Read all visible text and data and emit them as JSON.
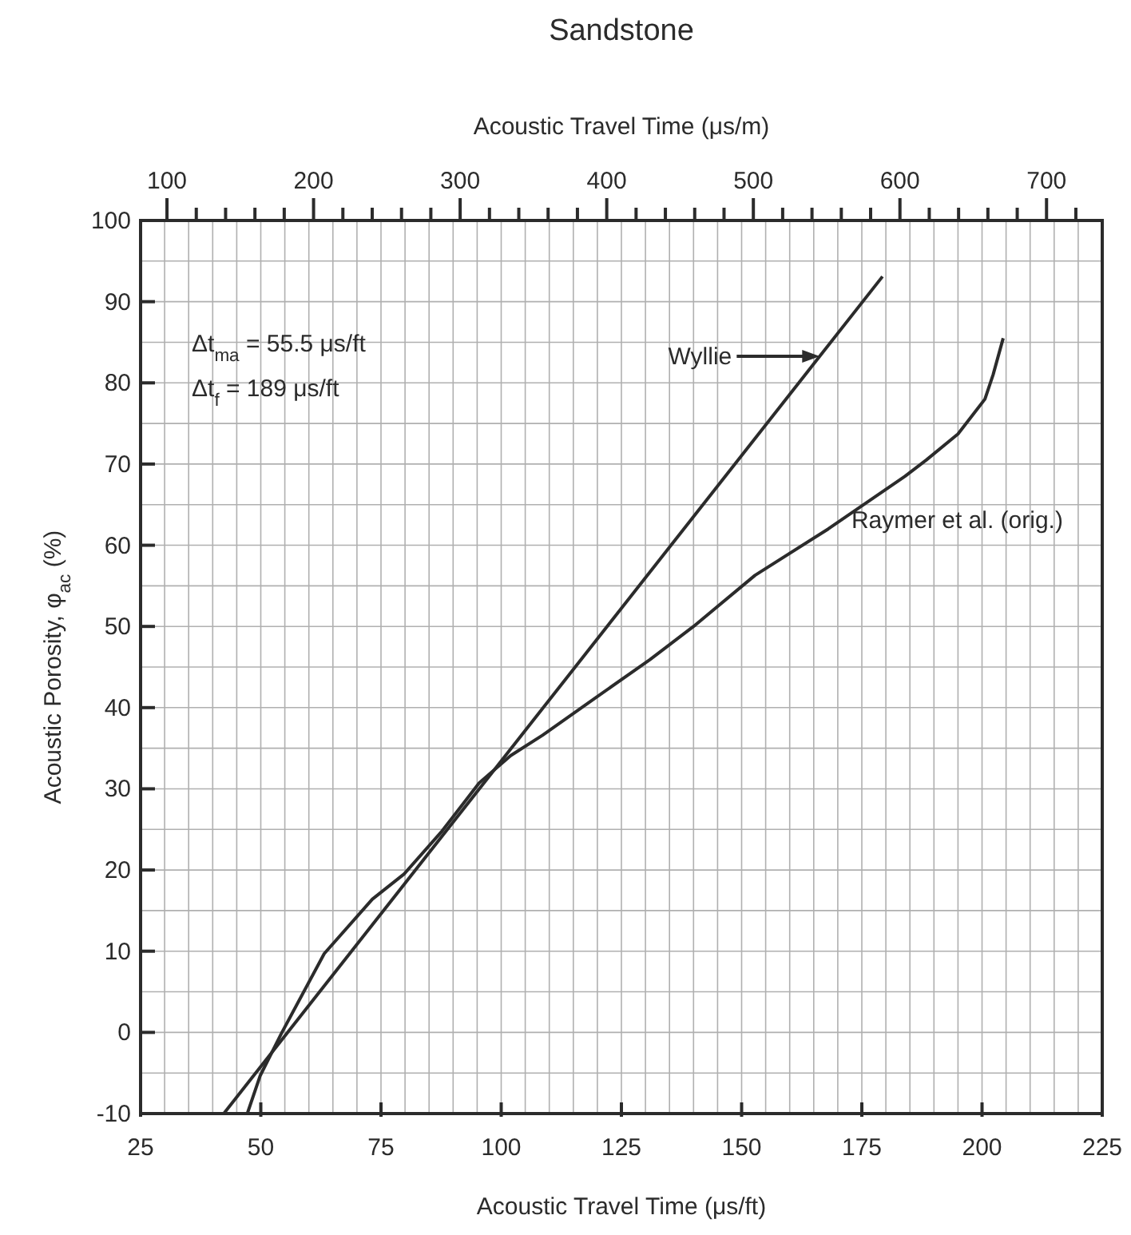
{
  "chart_data": {
    "type": "line",
    "title": "Sandstone",
    "xlabel": "Acoustic Travel Time (μs/ft)",
    "x2label": "Acoustic Travel Time (μs/m)",
    "ylabel": "Acoustic Porosity, φ$_{ac}$ (%)",
    "annotations": [
      "Δt$_{ma}$ = 55.5 μs/ft",
      "Δt$_{f}$ = 189 μs/ft"
    ],
    "grid": true,
    "xlim": [
      25,
      225
    ],
    "xticks": [
      25,
      {
        "value": 30,
        "label": null
      },
      {
        "value": 35,
        "label": null
      },
      {
        "value": 40,
        "label": null
      },
      {
        "value": 45,
        "label": null
      },
      50,
      {
        "value": 55,
        "label": null
      },
      {
        "value": 60,
        "label": null
      },
      {
        "value": 65,
        "label": null
      },
      {
        "value": 70,
        "label": null
      },
      75,
      {
        "value": 80,
        "label": null
      },
      {
        "value": 85,
        "label": null
      },
      {
        "value": 90,
        "label": null
      },
      {
        "value": 95,
        "label": null
      },
      100,
      {
        "value": 105,
        "label": null
      },
      {
        "value": 110,
        "label": null
      },
      {
        "value": 115,
        "label": null
      },
      {
        "value": 120,
        "label": null
      },
      125,
      {
        "value": 130,
        "label": null
      },
      {
        "value": 135,
        "label": null
      },
      {
        "value": 140,
        "label": null
      },
      {
        "value": 145,
        "label": null
      },
      150,
      {
        "value": 155,
        "label": null
      },
      {
        "value": 160,
        "label": null
      },
      {
        "value": 165,
        "label": null
      },
      {
        "value": 170,
        "label": null
      },
      175,
      {
        "value": 180,
        "label": null
      },
      {
        "value": 185,
        "label": null
      },
      {
        "value": 190,
        "label": null
      },
      {
        "value": 195,
        "label": null
      },
      200,
      {
        "value": 205,
        "label": null
      },
      {
        "value": 210,
        "label": null
      },
      {
        "value": 215,
        "label": null
      },
      {
        "value": 220,
        "label": null
      },
      225
    ],
    "ylim": [
      -10,
      100
    ],
    "yticks": [
      -10,
      {
        "value": -5,
        "label": null
      },
      0,
      {
        "value": 5,
        "label": null
      },
      10,
      {
        "value": 15,
        "label": null
      },
      20,
      {
        "value": 25,
        "label": null
      },
      30,
      {
        "value": 35,
        "label": null
      },
      40,
      {
        "value": 45,
        "label": null
      },
      50,
      {
        "value": 55,
        "label": null
      },
      60,
      {
        "value": 65,
        "label": null
      },
      70,
      {
        "value": 75,
        "label": null
      },
      80,
      {
        "value": 85,
        "label": null
      },
      90,
      {
        "value": 95,
        "label": null
      },
      100
    ],
    "x2lim": [
      82,
      738
    ],
    "x2ticks": [
      100,
      {
        "value": 120,
        "label": null
      },
      {
        "value": 140,
        "label": null
      },
      {
        "value": 160,
        "label": null
      },
      {
        "value": 180,
        "label": null
      },
      200,
      {
        "value": 220,
        "label": null
      },
      {
        "value": 240,
        "label": null
      },
      {
        "value": 260,
        "label": null
      },
      {
        "value": 280,
        "label": null
      },
      300,
      {
        "value": 320,
        "label": null
      },
      {
        "value": 340,
        "label": null
      },
      {
        "value": 360,
        "label": null
      },
      {
        "value": 380,
        "label": null
      },
      400,
      {
        "value": 420,
        "label": null
      },
      {
        "value": 440,
        "label": null
      },
      {
        "value": 460,
        "label": null
      },
      {
        "value": 480,
        "label": null
      },
      500,
      {
        "value": 520,
        "label": null
      },
      {
        "value": 540,
        "label": null
      },
      {
        "value": 560,
        "label": null
      },
      {
        "value": 580,
        "label": null
      },
      600,
      {
        "value": 620,
        "label": null
      },
      {
        "value": 640,
        "label": null
      },
      {
        "value": 660,
        "label": null
      },
      {
        "value": 680,
        "label": null
      },
      700,
      {
        "value": 720,
        "label": null
      }
    ],
    "series": [
      {
        "name": "Wyllie",
        "color": "#2b2b2b",
        "x": [
          42.3,
          179.3
        ],
        "values": [
          -10,
          93.1
        ]
      },
      {
        "name": "Raymer et al. (orig.)",
        "color": "#2b2b2b",
        "x": [
          47.2,
          49.9,
          54.4,
          63.2,
          73.2,
          79.8,
          87.7,
          95.4,
          102,
          108.6,
          119.6,
          130.9,
          140,
          152.8,
          168,
          184,
          188.4,
          195,
          200.6,
          202.3,
          204.4
        ],
        "values": [
          -10,
          -5.3,
          0,
          9.7,
          16.4,
          19.5,
          24.8,
          30.7,
          34.1,
          36.6,
          41.2,
          45.9,
          50,
          56.3,
          62,
          68.5,
          70.5,
          73.7,
          78,
          81,
          85.5
        ]
      }
    ]
  }
}
